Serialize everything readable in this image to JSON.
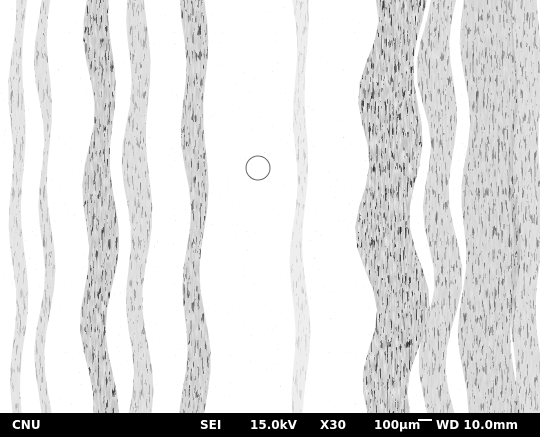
{
  "image": {
    "subject": "scanning electron micrograph of a surface with vertical dark striations",
    "colors": {
      "background": "#ffffff",
      "texture": "#000000",
      "databar": "#000000",
      "databar_text": "#ffffff"
    }
  },
  "databar": {
    "label": "CNU",
    "detector": "SEI",
    "voltage": "15.0kV",
    "magnification": "X30",
    "scale": "100μm",
    "working_distance": "WD 10.0mm"
  }
}
